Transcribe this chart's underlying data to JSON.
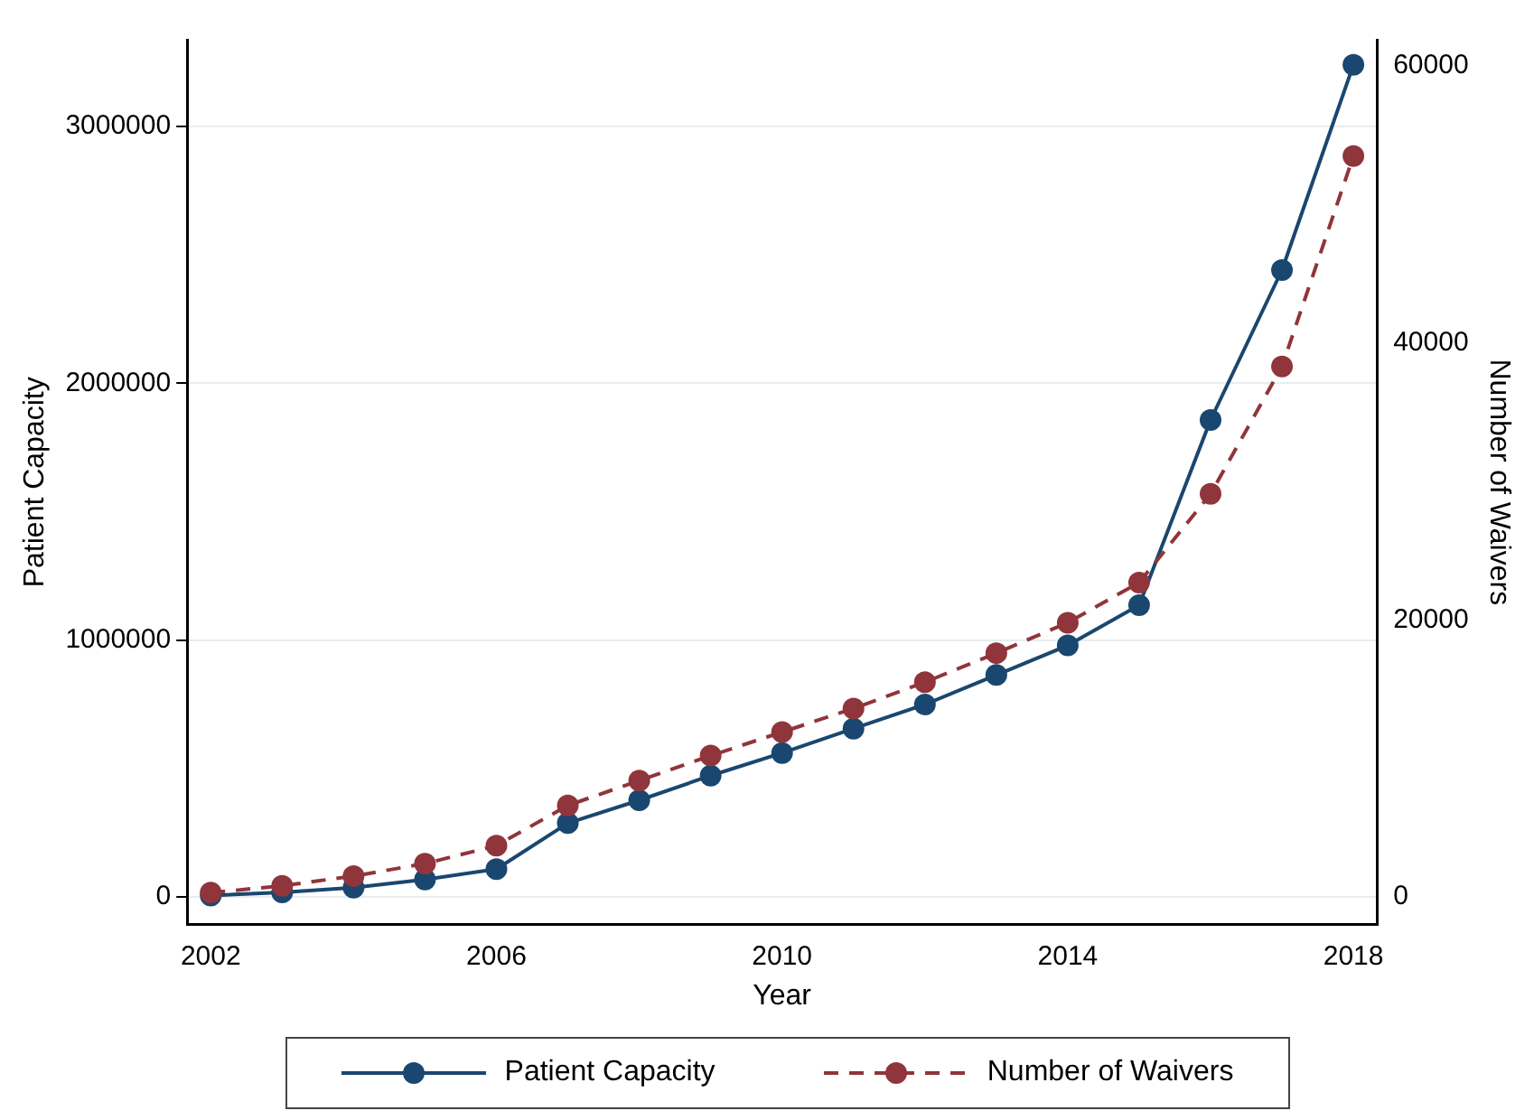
{
  "chart_data": {
    "type": "line",
    "xlabel": "Year",
    "ylabel": "Patient Capacity",
    "y2label": "Number of Waivers",
    "x": [
      2002,
      2003,
      2004,
      2005,
      2006,
      2007,
      2008,
      2009,
      2010,
      2011,
      2012,
      2013,
      2014,
      2015,
      2016,
      2017,
      2018
    ],
    "xlim": [
      2001.67,
      2018.33
    ],
    "xticks": [
      2002,
      2006,
      2010,
      2014,
      2018
    ],
    "ylim": [
      -108000,
      3338000
    ],
    "yticks": [
      0,
      1000000,
      2000000,
      3000000
    ],
    "y2lim": [
      -2000,
      61900
    ],
    "y2ticks": [
      0,
      20000,
      40000,
      60000
    ],
    "series": [
      {
        "name": "Patient Capacity",
        "color": "#1a476f",
        "line_style": "solid",
        "values": [
          5000,
          17000,
          36000,
          67000,
          108000,
          287000,
          376000,
          472000,
          560000,
          655000,
          749000,
          864000,
          979000,
          1136000,
          1857000,
          2441000,
          3240000
        ]
      },
      {
        "name": "Number of Waivers",
        "color": "#90353b",
        "line_style": "dashed",
        "axis": "y2",
        "values": [
          300,
          800,
          1500,
          2400,
          3700,
          6600,
          8400,
          10200,
          11900,
          13600,
          15500,
          17600,
          19800,
          22700,
          29100,
          38300,
          53500
        ]
      }
    ],
    "grid": "y",
    "legend": "bottom",
    "marker": "circle"
  }
}
